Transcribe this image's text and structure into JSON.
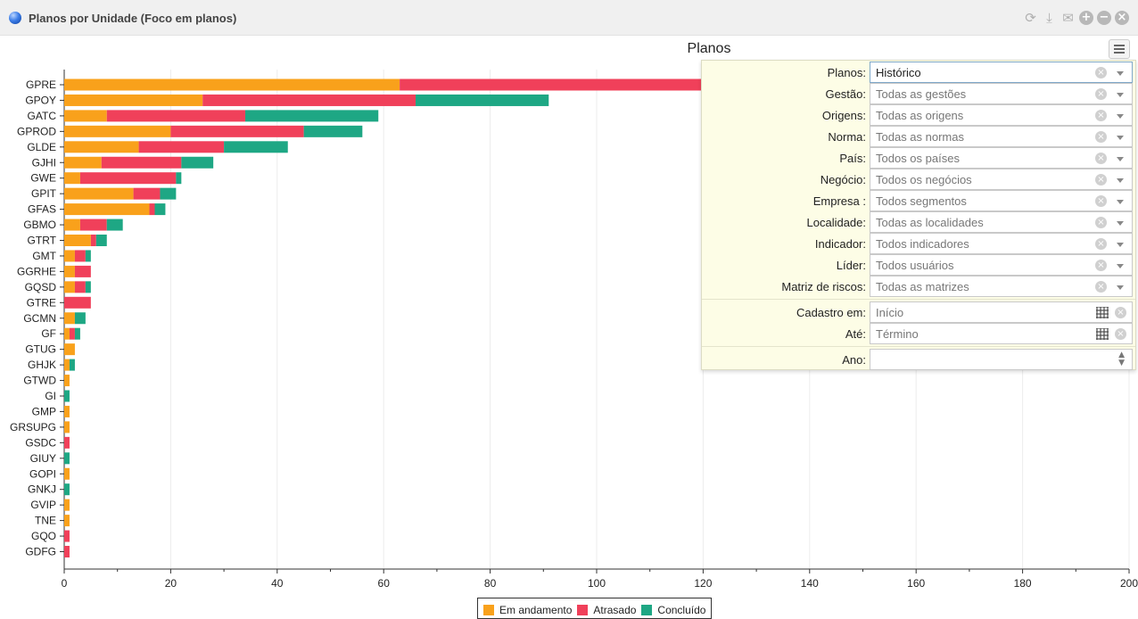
{
  "window": {
    "title": "Planos por Unidade (Foco em planos)",
    "icons": [
      "refresh-icon",
      "download-icon",
      "email-icon",
      "add-icon",
      "minimize-icon",
      "close-icon"
    ]
  },
  "chart_data": {
    "type": "bar",
    "orientation": "horizontal",
    "stacked": true,
    "title": "Planos",
    "xlabel": "",
    "ylabel": "",
    "xlim": [
      0,
      200
    ],
    "xticks": [
      0,
      20,
      40,
      60,
      80,
      100,
      120,
      140,
      160,
      180,
      200
    ],
    "grid": true,
    "legend_position": "bottom",
    "categories": [
      "GPRE",
      "GPOY",
      "GATC",
      "GPROD",
      "GLDE",
      "GJHI",
      "GWE",
      "GPIT",
      "GFAS",
      "GBMO",
      "GTRT",
      "GMT",
      "GGRHE",
      "GQSD",
      "GTRE",
      "GCMN",
      "GF",
      "GTUG",
      "GHJK",
      "GTWD",
      "GI",
      "GMP",
      "GRSUPG",
      "GSDC",
      "GIUY",
      "GOPI",
      "GNKJ",
      "GVIP",
      "TNE",
      "GQO",
      "GDFG"
    ],
    "series": [
      {
        "name": "Em andamento",
        "color": "#f9a11b",
        "values": [
          63,
          26,
          8,
          20,
          14,
          7,
          3,
          13,
          16,
          3,
          5,
          2,
          2,
          2,
          0,
          2,
          1,
          2,
          1,
          1,
          0,
          1,
          1,
          0,
          0,
          1,
          0,
          1,
          1,
          0,
          0
        ]
      },
      {
        "name": "Atrasado",
        "color": "#f0405a",
        "values": [
          57,
          40,
          26,
          25,
          16,
          15,
          18,
          5,
          1,
          5,
          1,
          2,
          3,
          2,
          5,
          0,
          1,
          0,
          0,
          0,
          0,
          0,
          0,
          1,
          0,
          0,
          0,
          0,
          0,
          1,
          1
        ]
      },
      {
        "name": "Concluído",
        "color": "#1ea784",
        "values": [
          0,
          25,
          25,
          11,
          12,
          6,
          1,
          3,
          2,
          3,
          2,
          1,
          0,
          1,
          0,
          2,
          1,
          0,
          1,
          0,
          1,
          0,
          0,
          0,
          1,
          0,
          1,
          0,
          0,
          0,
          0
        ]
      }
    ]
  },
  "filters": {
    "rows": [
      {
        "label": "Planos:",
        "value": "Histórico",
        "active": true
      },
      {
        "label": "Gestão:",
        "value": "Todas as gestões"
      },
      {
        "label": "Origens:",
        "value": "Todas as origens"
      },
      {
        "label": "Norma:",
        "value": "Todas as normas"
      },
      {
        "label": "País:",
        "value": "Todos os países"
      },
      {
        "label": "Negócio:",
        "value": "Todos os negócios"
      },
      {
        "label": "Empresa :",
        "value": "Todos segmentos"
      },
      {
        "label": "Localidade:",
        "value": "Todas as localidades"
      },
      {
        "label": "Indicador:",
        "value": "Todos indicadores"
      },
      {
        "label": "Líder:",
        "value": "Todos usuários"
      },
      {
        "label": "Matriz de riscos:",
        "value": "Todas as matrizes"
      }
    ],
    "dates": [
      {
        "label": "Cadastro em:",
        "placeholder": "Início"
      },
      {
        "label": "Até:",
        "placeholder": "Término"
      }
    ],
    "year": {
      "label": "Ano:",
      "value": ""
    }
  }
}
